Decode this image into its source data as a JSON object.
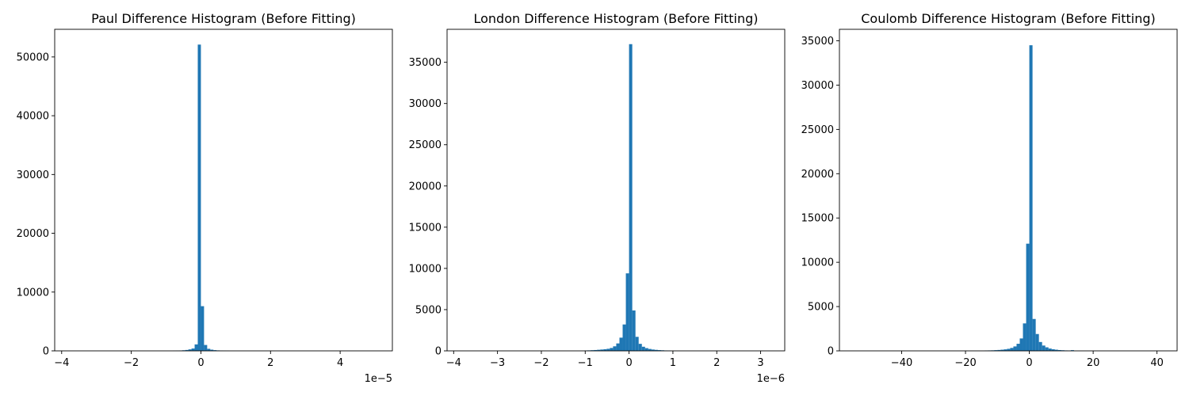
{
  "bar_color": "#1f77b4",
  "chart_data": [
    {
      "type": "bar",
      "title": "Paul Difference Histogram (Before Fitting)",
      "xlabel": "",
      "ylabel": "",
      "x_offset_label": "1e−5",
      "xlim": [
        -4.2,
        5.5
      ],
      "ylim": [
        0,
        54700
      ],
      "xticks": [
        -4,
        -2,
        0,
        2,
        4
      ],
      "xtick_labels": [
        "−4",
        "−2",
        "0",
        "2",
        "4"
      ],
      "yticks": [
        0,
        10000,
        20000,
        30000,
        40000,
        50000
      ],
      "ytick_labels": [
        "0",
        "10000",
        "20000",
        "30000",
        "40000",
        "50000"
      ],
      "bin_width": 0.09,
      "bins": [
        [
          -0.81,
          20
        ],
        [
          -0.72,
          40
        ],
        [
          -0.63,
          60
        ],
        [
          -0.54,
          100
        ],
        [
          -0.45,
          150
        ],
        [
          -0.36,
          250
        ],
        [
          -0.27,
          400
        ],
        [
          -0.18,
          1100
        ],
        [
          -0.09,
          52100
        ],
        [
          0.0,
          7600
        ],
        [
          0.09,
          1000
        ],
        [
          0.18,
          350
        ],
        [
          0.27,
          200
        ],
        [
          0.36,
          120
        ],
        [
          0.45,
          80
        ],
        [
          0.54,
          50
        ],
        [
          0.63,
          30
        ],
        [
          0.72,
          20
        ]
      ],
      "grid": false
    },
    {
      "type": "bar",
      "title": "London Difference Histogram (Before Fitting)",
      "xlabel": "",
      "ylabel": "",
      "x_offset_label": "1e−6",
      "xlim": [
        -4.15,
        3.55
      ],
      "ylim": [
        0,
        39000
      ],
      "xticks": [
        -4,
        -3,
        -2,
        -1,
        0,
        1,
        2,
        3
      ],
      "xtick_labels": [
        "−4",
        "−3",
        "−2",
        "−1",
        "0",
        "1",
        "2",
        "3"
      ],
      "yticks": [
        0,
        5000,
        10000,
        15000,
        20000,
        25000,
        30000,
        35000
      ],
      "ytick_labels": [
        "0",
        "5000",
        "10000",
        "15000",
        "20000",
        "25000",
        "30000",
        "35000"
      ],
      "bin_width": 0.073,
      "bins": [
        [
          -1.022,
          40
        ],
        [
          -0.949,
          60
        ],
        [
          -0.876,
          80
        ],
        [
          -0.803,
          100
        ],
        [
          -0.73,
          130
        ],
        [
          -0.657,
          160
        ],
        [
          -0.584,
          200
        ],
        [
          -0.511,
          250
        ],
        [
          -0.438,
          350
        ],
        [
          -0.365,
          550
        ],
        [
          -0.292,
          900
        ],
        [
          -0.219,
          1600
        ],
        [
          -0.146,
          3200
        ],
        [
          -0.073,
          9400
        ],
        [
          0.0,
          37200
        ],
        [
          0.073,
          4900
        ],
        [
          0.146,
          1700
        ],
        [
          0.219,
          850
        ],
        [
          0.292,
          500
        ],
        [
          0.365,
          330
        ],
        [
          0.438,
          230
        ],
        [
          0.511,
          160
        ],
        [
          0.584,
          120
        ],
        [
          0.657,
          90
        ],
        [
          0.73,
          70
        ],
        [
          0.803,
          50
        ],
        [
          0.876,
          40
        ]
      ],
      "grid": false
    },
    {
      "type": "bar",
      "title": "Coulomb Difference Histogram (Before Fitting)",
      "xlabel": "",
      "ylabel": "",
      "x_offset_label": "",
      "xlim": [
        -59.5,
        46.3
      ],
      "ylim": [
        0,
        36300
      ],
      "xticks": [
        -40,
        -20,
        0,
        20,
        40
      ],
      "xtick_labels": [
        "−40",
        "−20",
        "0",
        "20",
        "40"
      ],
      "yticks": [
        0,
        5000,
        10000,
        15000,
        20000,
        25000,
        30000,
        35000
      ],
      "ytick_labels": [
        "0",
        "5000",
        "10000",
        "15000",
        "20000",
        "25000",
        "30000",
        "35000"
      ],
      "bin_width": 1.0,
      "bins": [
        [
          -14,
          40
        ],
        [
          -13,
          50
        ],
        [
          -12,
          60
        ],
        [
          -11,
          80
        ],
        [
          -10,
          100
        ],
        [
          -9,
          130
        ],
        [
          -8,
          170
        ],
        [
          -7,
          230
        ],
        [
          -6,
          330
        ],
        [
          -5,
          500
        ],
        [
          -4,
          800
        ],
        [
          -3,
          1400
        ],
        [
          -2,
          3100
        ],
        [
          -1,
          12100
        ],
        [
          0,
          34500
        ],
        [
          1,
          3600
        ],
        [
          2,
          1900
        ],
        [
          3,
          1000
        ],
        [
          4,
          600
        ],
        [
          5,
          400
        ],
        [
          6,
          260
        ],
        [
          7,
          180
        ],
        [
          8,
          130
        ],
        [
          9,
          90
        ],
        [
          10,
          70
        ],
        [
          11,
          50
        ],
        [
          12,
          40
        ],
        [
          13,
          80
        ]
      ],
      "grid": false
    }
  ]
}
